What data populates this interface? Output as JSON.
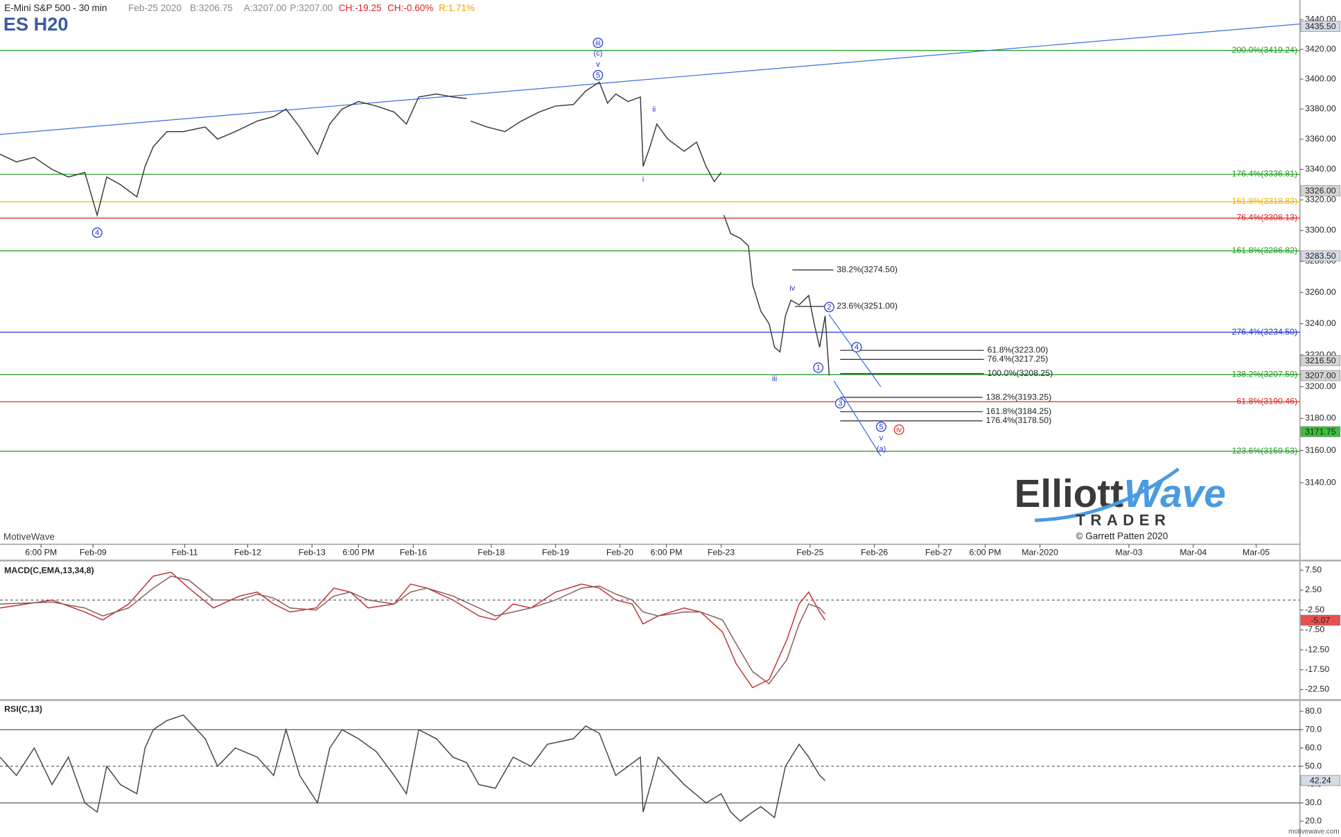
{
  "chart_data": [
    {
      "type": "line",
      "title": "E-Mini S&P 500 - 30 min",
      "symbol": "ES H20",
      "info": [
        {
          "text": "Feb-25 2020",
          "color": "#888888"
        },
        {
          "text": "B:3206.75",
          "color": "#888888"
        },
        {
          "text": "A:3207.00",
          "color": "#888888"
        },
        {
          "text": "P:3207.00",
          "color": "#888888"
        },
        {
          "text": "CH:-19.25",
          "color": "#e02020"
        },
        {
          "text": "CH:-0.60%",
          "color": "#e02020"
        },
        {
          "text": "R:1.71%",
          "color": "#f0a000"
        }
      ],
      "x": [
        0,
        12,
        25,
        38,
        50,
        62,
        71,
        78,
        88,
        100,
        106,
        112,
        122,
        134,
        150,
        159,
        172,
        188,
        200,
        209,
        219,
        232,
        241,
        250,
        262,
        275,
        288,
        297,
        306,
        319,
        331,
        341,
        342,
        344,
        356,
        369,
        381,
        394,
        406,
        419,
        428,
        438,
        444,
        450,
        459,
        468,
        470,
        475,
        480,
        488,
        500,
        509,
        516,
        522,
        527,
        528,
        529,
        534,
        541,
        547,
        550,
        556,
        562,
        566,
        570,
        574,
        578,
        584,
        591,
        595,
        599,
        603,
        606
      ],
      "series": [
        {
          "color": "#3a3a3a",
          "values": [
            3350,
            3345,
            3348,
            3340,
            3335,
            3338,
            3310,
            3335,
            3330,
            3322,
            3342,
            3355,
            3365,
            3365,
            3368,
            3360,
            3365,
            3372,
            3375,
            3380,
            3368,
            3350,
            3370,
            3380,
            3385,
            3382,
            3378,
            3370,
            3388,
            3390,
            3388,
            3387,
            null,
            3372,
            3368,
            3365,
            3372,
            3378,
            3382,
            3383,
            3392,
            3398,
            3384,
            3390,
            3385,
            3388,
            3342,
            3355,
            3370,
            3360,
            3352,
            3358,
            3342,
            3332,
            3338,
            null,
            3310,
            3298,
            3295,
            3290,
            3265,
            3248,
            3240,
            3225,
            3222,
            3245,
            3255,
            3252,
            3258,
            3240,
            3225,
            3245,
            3207
          ]
        }
      ],
      "xlim": [
        0,
        950
      ],
      "xticks": [
        {
          "value": 30,
          "label": "6:00 PM"
        },
        {
          "value": 68,
          "label": "Feb-09"
        },
        {
          "value": 135,
          "label": "Feb-11"
        },
        {
          "value": 181,
          "label": "Feb-12"
        },
        {
          "value": 228,
          "label": "Feb-13"
        },
        {
          "value": 262,
          "label": "6:00 PM"
        },
        {
          "value": 302,
          "label": "Feb-16"
        },
        {
          "value": 359,
          "label": "Feb-18"
        },
        {
          "value": 406,
          "label": "Feb-19"
        },
        {
          "value": 453,
          "label": "Feb-20"
        },
        {
          "value": 487,
          "label": "6:00 PM"
        },
        {
          "value": 527,
          "label": "Feb-23"
        },
        {
          "value": 592,
          "label": "Feb-25"
        },
        {
          "value": 639,
          "label": "Feb-26"
        },
        {
          "value": 686,
          "label": "Feb-27"
        },
        {
          "value": 720,
          "label": "6:00 PM"
        },
        {
          "value": 760,
          "label": "Mar-2020"
        },
        {
          "value": 825,
          "label": "Mar-03"
        },
        {
          "value": 872,
          "label": "Mar-04"
        },
        {
          "value": 918,
          "label": "Mar-05"
        }
      ],
      "ylim": [
        3102.1,
        3453.4
      ],
      "log_scale": true,
      "yticks": [
        {
          "value": 3140,
          "label": "3140.00"
        },
        {
          "value": 3160,
          "label": "3160.00"
        },
        {
          "value": 3180,
          "label": "3180.00"
        },
        {
          "value": 3200,
          "label": "3200.00"
        },
        {
          "value": 3220,
          "label": "3220.00"
        },
        {
          "value": 3240,
          "label": "3240.00"
        },
        {
          "value": 3260,
          "label": "3260.00"
        },
        {
          "value": 3280,
          "label": "3280.00"
        },
        {
          "value": 3300,
          "label": "3300.00"
        },
        {
          "value": 3320,
          "label": "3320.00"
        },
        {
          "value": 3340,
          "label": "3340.00"
        },
        {
          "value": 3360,
          "label": "3360.00"
        },
        {
          "value": 3380,
          "label": "3380.00"
        },
        {
          "value": 3400,
          "label": "3400.00"
        },
        {
          "value": 3420,
          "label": "3420.00"
        },
        {
          "value": 3440,
          "label": "3440.00"
        }
      ],
      "levels": [
        {
          "value": 3419.24,
          "label": "200.0%(3419.24)",
          "color": "#1a9a1a"
        },
        {
          "value": 3336.81,
          "label": "176.4%(3336.81)",
          "color": "#1a9a1a"
        },
        {
          "value": 3318.83,
          "label": "161.8%(3318.83)",
          "color": "#f5b000"
        },
        {
          "value": 3308.13,
          "label": "76.4%(3308.13)",
          "color": "#e02020"
        },
        {
          "value": 3286.82,
          "label": "161.8%(3286.82)",
          "color": "#1a9a1a"
        },
        {
          "value": 3234.5,
          "label": "276.4%(3234.50)",
          "color": "#2030d0"
        },
        {
          "value": 3207.59,
          "label": "138.2%(3207.59)",
          "color": "#1a9a1a"
        },
        {
          "value": 3190.46,
          "label": "61.8%(3190.46)",
          "color": "#e02020"
        },
        {
          "value": 3159.53,
          "label": "123.6%(3159.53)",
          "color": "#1a9a1a"
        }
      ],
      "short_levels": [
        {
          "value": 3274.5,
          "label": "38.2%(3274.50)",
          "from": 579,
          "to": 609
        },
        {
          "value": 3251,
          "label": "23.6%(3251.00)",
          "from": 581,
          "to": 609
        },
        {
          "value": 3223,
          "label": "61.8%(3223.00)",
          "from": 614,
          "to": 719
        },
        {
          "value": 3217.25,
          "label": "76.4%(3217.25)",
          "from": 614,
          "to": 719
        },
        {
          "value": 3208.25,
          "label": "100.0%(3208.25)",
          "from": 614,
          "to": 719
        },
        {
          "value": 3193.25,
          "label": "138.2%(3193.25)",
          "from": 614,
          "to": 718
        },
        {
          "value": 3184.25,
          "label": "161.8%(3184.25)",
          "from": 614,
          "to": 718
        },
        {
          "value": 3178.5,
          "label": "176.4%(3178.50)",
          "from": 614,
          "to": 718
        }
      ],
      "price_boxes": [
        {
          "value": 3435.5,
          "label": "3435.50",
          "color": "#d4dae6"
        },
        {
          "value": 3326,
          "label": "3326.00",
          "color": "#d4d4d4"
        },
        {
          "value": 3283.5,
          "label": "3283.50",
          "color": "#d4dae6"
        },
        {
          "value": 3216.5,
          "label": "3216.50",
          "color": "#d4d4d4"
        },
        {
          "value": 3207,
          "label": "3207.00",
          "color": "#d4d4d4"
        },
        {
          "value": 3171.75,
          "label": "3171.75",
          "color": "#3cbf3c"
        }
      ],
      "annotations": [
        {
          "text": "iii",
          "x": 437,
          "y": 3424.4,
          "circled": true,
          "color": "#2030d0"
        },
        {
          "text": "(c)",
          "x": 437,
          "y": 3417.5,
          "circled": false,
          "color": "#2030d0"
        },
        {
          "text": "v",
          "x": 437,
          "y": 3410,
          "circled": false,
          "color": "#2030d0"
        },
        {
          "text": "5",
          "x": 437,
          "y": 3402.6,
          "circled": true,
          "color": "#2030d0"
        },
        {
          "text": "ii",
          "x": 478,
          "y": 3380,
          "circled": false,
          "color": "#2030d0"
        },
        {
          "text": "i",
          "x": 470,
          "y": 3333.6,
          "circled": false,
          "color": "#2030d0"
        },
        {
          "text": "4",
          "x": 71,
          "y": 3298.6,
          "circled": true,
          "color": "#2030d0"
        },
        {
          "text": "iv",
          "x": 579,
          "y": 3262.7,
          "circled": false,
          "color": "#2030d0"
        },
        {
          "text": "2",
          "x": 606,
          "y": 3250.6,
          "circled": true,
          "color": "#2030d0"
        },
        {
          "text": "4",
          "x": 626,
          "y": 3225,
          "circled": true,
          "color": "#2030d0"
        },
        {
          "text": "1",
          "x": 598,
          "y": 3212,
          "circled": true,
          "color": "#2030d0"
        },
        {
          "text": "iii",
          "x": 566,
          "y": 3205,
          "circled": false,
          "color": "#2030d0"
        },
        {
          "text": "3",
          "x": 614,
          "y": 3189.5,
          "circled": true,
          "color": "#2030d0"
        },
        {
          "text": "5",
          "x": 644,
          "y": 3174.8,
          "circled": true,
          "color": "#2030d0"
        },
        {
          "text": "v",
          "x": 644,
          "y": 3167.8,
          "circled": false,
          "color": "#2030d0"
        },
        {
          "text": "(a)",
          "x": 644,
          "y": 3161,
          "circled": false,
          "color": "#2030d0"
        },
        {
          "text": "iv",
          "x": 657,
          "y": 3173,
          "circled": true,
          "color": "#e02020"
        }
      ],
      "trendlines": [
        {
          "x": [
            0,
            950
          ],
          "values": [
            3363.1,
            3437.1
          ]
        },
        {
          "x": [
            605.6,
            643.75
          ],
          "values": [
            3246.1,
            3199.9
          ]
        },
        {
          "x": [
            609.4,
            643.75
          ],
          "values": [
            3203.7,
            3156.5
          ]
        }
      ]
    },
    {
      "type": "line",
      "title": "MACD(C,EMA,13,34,8)",
      "x": [
        0,
        38,
        62,
        75,
        94,
        112,
        125,
        138,
        156,
        175,
        188,
        200,
        212,
        231,
        244,
        256,
        269,
        288,
        300,
        312,
        331,
        350,
        362,
        375,
        388,
        406,
        425,
        438,
        450,
        462,
        470,
        481,
        500,
        512,
        528,
        538,
        550,
        562,
        575,
        584,
        591,
        599,
        603
      ],
      "series": [
        {
          "color": "#c03030",
          "values": [
            -2,
            0,
            -3,
            -5,
            -1,
            6,
            7,
            3,
            -2,
            1,
            2,
            -1,
            -3,
            -2,
            3,
            2,
            -2,
            -1,
            4,
            3,
            0,
            -4,
            -5,
            -1,
            -2,
            2,
            4,
            3,
            0,
            -1,
            -6,
            -4,
            -2,
            -3,
            -8,
            -16,
            -22,
            -20,
            -10,
            -1,
            2,
            -3,
            -5.07
          ]
        },
        {
          "color": "#8a5a5a",
          "values": [
            -1,
            -0.5,
            -2,
            -4,
            -2,
            3,
            6,
            5,
            0,
            0,
            1.5,
            0.5,
            -2,
            -2.5,
            1,
            2,
            0,
            -1,
            2,
            3,
            1,
            -2,
            -4,
            -3,
            -2,
            0,
            3,
            3.5,
            1.5,
            0,
            -3,
            -4,
            -3,
            -3,
            -5,
            -11,
            -18,
            -21,
            -15,
            -6,
            -1,
            -2,
            -3.5
          ]
        }
      ],
      "xlim": [
        0,
        950
      ],
      "ylim": [
        -24.9,
        9.7
      ],
      "yticks": [
        {
          "value": 7.5,
          "label": "7.50"
        },
        {
          "value": 2.5,
          "label": "2.50"
        },
        {
          "value": -2.5,
          "label": "-2.50"
        },
        {
          "value": -7.5,
          "label": "-7.50"
        },
        {
          "value": -12.5,
          "label": "-12.50"
        },
        {
          "value": -17.5,
          "label": "-17.50"
        },
        {
          "value": -22.5,
          "label": "-22.50"
        }
      ],
      "dashed_hlines": [
        0
      ],
      "price_boxes": [
        {
          "value": -5.07,
          "label": "-5.07",
          "color": "#e85050"
        }
      ]
    },
    {
      "type": "line",
      "title": "RSI(C,13)",
      "x": [
        0,
        12,
        25,
        38,
        50,
        62,
        71,
        78,
        88,
        100,
        106,
        112,
        122,
        134,
        150,
        159,
        172,
        188,
        200,
        209,
        219,
        232,
        241,
        250,
        262,
        275,
        288,
        297,
        306,
        319,
        331,
        341,
        350,
        362,
        375,
        388,
        400,
        419,
        428,
        438,
        450,
        459,
        468,
        470,
        481,
        500,
        516,
        527,
        534,
        541,
        550,
        556,
        566,
        574,
        584,
        591,
        599,
        603
      ],
      "series": [
        {
          "color": "#444444",
          "values": [
            55,
            45,
            60,
            40,
            55,
            30,
            25,
            50,
            40,
            35,
            60,
            70,
            75,
            78,
            65,
            50,
            60,
            55,
            45,
            70,
            45,
            30,
            60,
            70,
            65,
            58,
            45,
            35,
            70,
            65,
            55,
            52,
            40,
            38,
            55,
            50,
            62,
            65,
            72,
            68,
            45,
            50,
            55,
            25,
            55,
            40,
            30,
            35,
            25,
            20,
            25,
            28,
            22,
            50,
            62,
            55,
            45,
            42.24
          ]
        }
      ],
      "xlim": [
        0,
        950
      ],
      "ylim": [
        11.4,
        85.7
      ],
      "yticks": [
        {
          "value": 80,
          "label": "80.0"
        },
        {
          "value": 70,
          "label": "70.0"
        },
        {
          "value": 60,
          "label": "60.0"
        },
        {
          "value": 50,
          "label": "50.0"
        },
        {
          "value": 40,
          "label": "40.0"
        },
        {
          "value": 30,
          "label": "30.0"
        },
        {
          "value": 20,
          "label": "20.0"
        }
      ],
      "hlines": [
        70,
        30
      ],
      "dashed_hlines": [
        50
      ],
      "price_boxes": [
        {
          "value": 42.24,
          "label": "42.24",
          "color": "#d4dae6"
        }
      ]
    }
  ],
  "watermark": "MotiveWave",
  "footer": "motivewave.com",
  "logo": {
    "word1": "Elliott",
    "word2": "Wave",
    "word3": "TRADER",
    "credit": "© Garrett Patten 2020"
  }
}
